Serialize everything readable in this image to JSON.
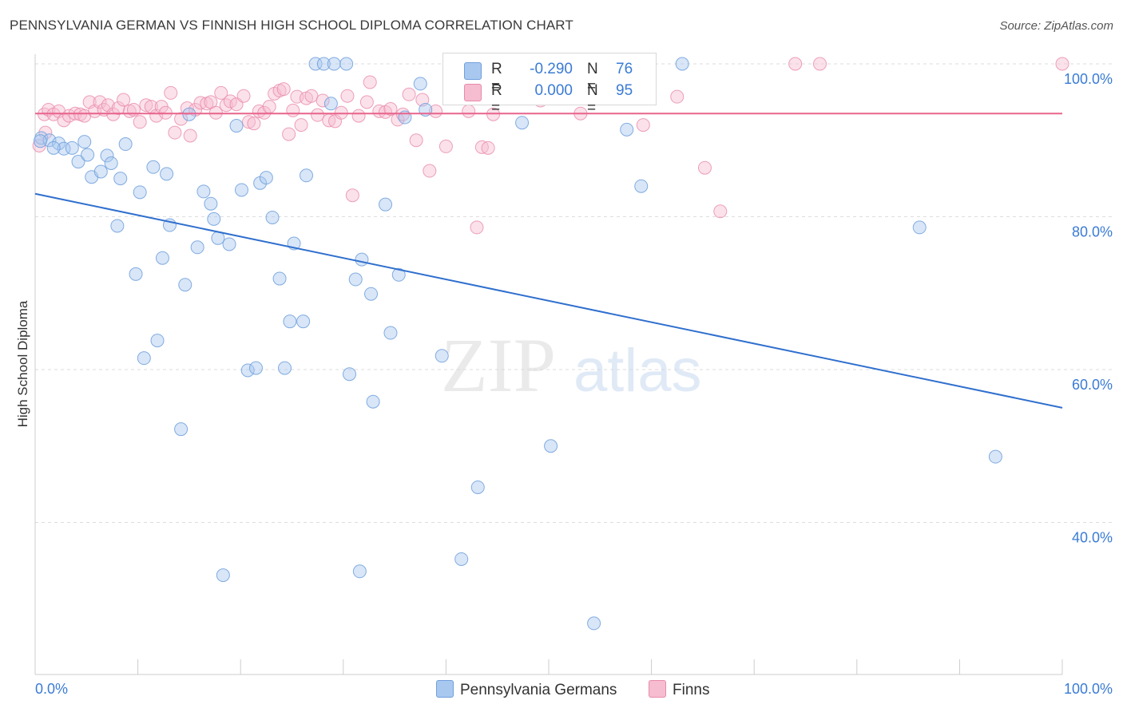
{
  "title": "PENNSYLVANIA GERMAN VS FINNISH HIGH SCHOOL DIPLOMA CORRELATION CHART",
  "source": "Source: ZipAtlas.com",
  "watermark": {
    "zip": "ZIP",
    "atlas": "atlas"
  },
  "colors": {
    "blue_fill": "#a9c8ef",
    "blue_stroke": "#6f9fdc",
    "blue_line": "#2f6fce",
    "pink_fill": "#f6bcd0",
    "pink_stroke": "#e88aaa",
    "pink_line": "#e8648c",
    "axis_text": "#3a7bd5"
  },
  "legend": {
    "rows": [
      {
        "r_label": "R =",
        "r_value": "-0.290",
        "n_label": "N =",
        "n_value": "76"
      },
      {
        "r_label": "R =",
        "r_value": "0.000",
        "n_label": "N =",
        "n_value": "95"
      }
    ]
  },
  "bottom_legend": [
    "Pennsylvania Germans",
    "Finns"
  ],
  "chart_data": {
    "type": "scatter",
    "title": "PENNSYLVANIA GERMAN VS FINNISH HIGH SCHOOL DIPLOMA CORRELATION CHART",
    "xlabel": "",
    "ylabel": "High School Diploma",
    "xlim": [
      0,
      100
    ],
    "ylim": [
      18,
      102
    ],
    "x_tick_labels": [
      "0.0%",
      "100.0%"
    ],
    "y_ticks": [
      40,
      60,
      80,
      100
    ],
    "y_tick_labels": [
      "40.0%",
      "60.0%",
      "80.0%",
      "100.0%"
    ],
    "grid": "horizontal dashed",
    "legend_placement": "top-center",
    "series": [
      {
        "name": "Pennsylvania Germans",
        "r": -0.29,
        "n": 76,
        "trend": {
          "x": [
            0,
            100
          ],
          "y": [
            83.0,
            55.0
          ]
        },
        "points": [
          [
            0.6,
            90.3
          ],
          [
            1.4,
            90.0
          ],
          [
            2.3,
            89.6
          ],
          [
            2.8,
            88.9
          ],
          [
            3.6,
            89.0
          ],
          [
            4.2,
            87.2
          ],
          [
            4.8,
            89.8
          ],
          [
            5.1,
            88.1
          ],
          [
            5.5,
            85.2
          ],
          [
            6.4,
            85.9
          ],
          [
            7.0,
            88.0
          ],
          [
            7.4,
            87.0
          ],
          [
            8.0,
            78.8
          ],
          [
            8.3,
            85.0
          ],
          [
            8.8,
            89.5
          ],
          [
            9.8,
            72.5
          ],
          [
            10.2,
            83.2
          ],
          [
            10.6,
            61.5
          ],
          [
            11.5,
            86.5
          ],
          [
            11.9,
            63.8
          ],
          [
            12.4,
            74.6
          ],
          [
            12.8,
            85.6
          ],
          [
            13.1,
            78.9
          ],
          [
            14.2,
            52.2
          ],
          [
            14.6,
            71.1
          ],
          [
            15.8,
            76.0
          ],
          [
            16.4,
            83.3
          ],
          [
            17.1,
            81.7
          ],
          [
            17.4,
            79.7
          ],
          [
            17.8,
            77.2
          ],
          [
            18.3,
            33.1
          ],
          [
            18.9,
            76.4
          ],
          [
            19.6,
            91.9
          ],
          [
            20.1,
            83.5
          ],
          [
            20.7,
            59.9
          ],
          [
            21.5,
            60.2
          ],
          [
            21.9,
            84.4
          ],
          [
            22.5,
            85.1
          ],
          [
            23.1,
            79.9
          ],
          [
            23.8,
            71.9
          ],
          [
            24.3,
            60.2
          ],
          [
            24.8,
            66.3
          ],
          [
            25.2,
            76.5
          ],
          [
            26.1,
            66.3
          ],
          [
            26.4,
            85.4
          ],
          [
            27.3,
            100.0
          ],
          [
            28.1,
            100.0
          ],
          [
            28.8,
            94.8
          ],
          [
            29.1,
            100.0
          ],
          [
            30.3,
            100.0
          ],
          [
            30.6,
            59.4
          ],
          [
            31.2,
            71.8
          ],
          [
            31.8,
            74.4
          ],
          [
            31.6,
            33.6
          ],
          [
            32.7,
            69.9
          ],
          [
            32.9,
            55.8
          ],
          [
            34.1,
            81.6
          ],
          [
            34.6,
            64.8
          ],
          [
            35.4,
            72.4
          ],
          [
            37.5,
            97.4
          ],
          [
            39.6,
            61.8
          ],
          [
            41.5,
            35.2
          ],
          [
            43.1,
            44.6
          ],
          [
            47.4,
            92.3
          ],
          [
            50.2,
            50.0
          ],
          [
            54.4,
            26.8
          ],
          [
            57.6,
            91.4
          ],
          [
            59.0,
            84.0
          ],
          [
            63.0,
            100.0
          ],
          [
            93.5,
            48.6
          ],
          [
            86.1,
            78.6
          ],
          [
            0.5,
            89.9
          ],
          [
            1.8,
            89.0
          ],
          [
            15.0,
            93.4
          ],
          [
            36.0,
            93.0
          ],
          [
            38.0,
            94.0
          ]
        ]
      },
      {
        "name": "Finns",
        "r": 0.0,
        "n": 95,
        "trend": {
          "x": [
            0,
            100
          ],
          "y": [
            93.5,
            93.5
          ]
        },
        "points": [
          [
            0.4,
            89.3
          ],
          [
            0.9,
            93.4
          ],
          [
            1.3,
            94.0
          ],
          [
            1.8,
            93.4
          ],
          [
            2.3,
            93.8
          ],
          [
            2.8,
            92.6
          ],
          [
            3.3,
            93.2
          ],
          [
            3.9,
            93.5
          ],
          [
            4.4,
            93.4
          ],
          [
            4.8,
            93.2
          ],
          [
            5.3,
            95.0
          ],
          [
            5.8,
            93.8
          ],
          [
            6.3,
            95.0
          ],
          [
            6.7,
            94.0
          ],
          [
            7.1,
            94.6
          ],
          [
            7.6,
            93.4
          ],
          [
            8.1,
            94.2
          ],
          [
            8.6,
            95.3
          ],
          [
            9.2,
            93.8
          ],
          [
            9.6,
            94.0
          ],
          [
            10.2,
            92.4
          ],
          [
            10.8,
            94.6
          ],
          [
            11.3,
            94.4
          ],
          [
            11.8,
            93.2
          ],
          [
            12.3,
            94.4
          ],
          [
            12.7,
            93.6
          ],
          [
            13.2,
            96.2
          ],
          [
            13.6,
            91.0
          ],
          [
            14.2,
            92.8
          ],
          [
            14.8,
            94.2
          ],
          [
            15.1,
            90.6
          ],
          [
            15.6,
            94.0
          ],
          [
            16.1,
            94.9
          ],
          [
            16.7,
            94.8
          ],
          [
            17.1,
            95.0
          ],
          [
            17.6,
            93.6
          ],
          [
            18.1,
            96.2
          ],
          [
            18.6,
            94.6
          ],
          [
            19.0,
            95.1
          ],
          [
            19.6,
            94.7
          ],
          [
            20.3,
            95.8
          ],
          [
            20.8,
            92.4
          ],
          [
            21.3,
            92.2
          ],
          [
            21.8,
            93.8
          ],
          [
            22.3,
            93.6
          ],
          [
            22.8,
            94.4
          ],
          [
            23.3,
            96.1
          ],
          [
            23.8,
            96.5
          ],
          [
            24.2,
            96.7
          ],
          [
            24.7,
            90.8
          ],
          [
            25.1,
            93.9
          ],
          [
            25.5,
            95.7
          ],
          [
            25.9,
            92.0
          ],
          [
            26.4,
            95.5
          ],
          [
            26.9,
            95.8
          ],
          [
            27.5,
            93.3
          ],
          [
            28.0,
            95.2
          ],
          [
            28.6,
            92.6
          ],
          [
            29.2,
            92.5
          ],
          [
            29.8,
            93.6
          ],
          [
            30.4,
            95.8
          ],
          [
            30.9,
            82.8
          ],
          [
            31.5,
            93.2
          ],
          [
            32.3,
            95.0
          ],
          [
            32.6,
            97.6
          ],
          [
            33.5,
            93.8
          ],
          [
            34.1,
            93.7
          ],
          [
            34.6,
            94.1
          ],
          [
            35.3,
            92.7
          ],
          [
            35.8,
            93.4
          ],
          [
            36.4,
            96.0
          ],
          [
            37.1,
            90.0
          ],
          [
            37.7,
            95.3
          ],
          [
            38.4,
            86.0
          ],
          [
            39.0,
            93.8
          ],
          [
            40.0,
            89.2
          ],
          [
            41.1,
            98.7
          ],
          [
            42.2,
            93.8
          ],
          [
            43.0,
            78.6
          ],
          [
            43.5,
            89.1
          ],
          [
            44.1,
            89.0
          ],
          [
            44.6,
            93.4
          ],
          [
            49.2,
            95.2
          ],
          [
            53.1,
            93.5
          ],
          [
            56.6,
            98.9
          ],
          [
            59.2,
            92.0
          ],
          [
            62.5,
            95.7
          ],
          [
            65.2,
            86.4
          ],
          [
            66.7,
            80.7
          ],
          [
            74.0,
            100.0
          ],
          [
            76.4,
            100.0
          ],
          [
            100.0,
            100.0
          ],
          [
            59.0,
            100.0
          ],
          [
            46.0,
            95.7
          ],
          [
            1.0,
            91.0
          ]
        ]
      }
    ]
  }
}
